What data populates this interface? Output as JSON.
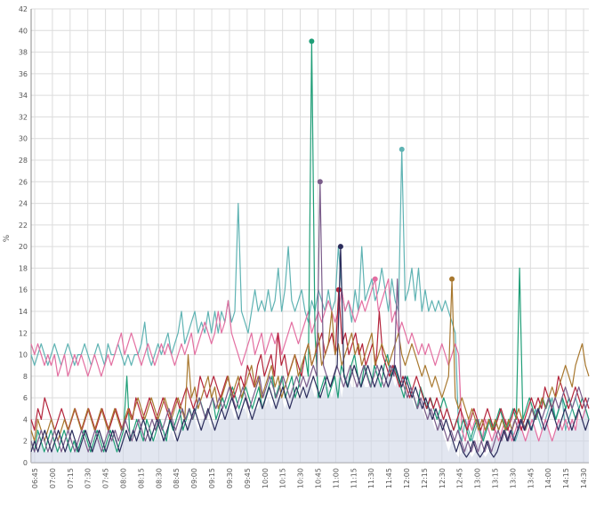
{
  "chart_data": {
    "type": "line",
    "title": "",
    "xlabel": "",
    "ylabel": "%",
    "ylim": [
      0,
      42
    ],
    "y_ticks": [
      0,
      2,
      4,
      6,
      8,
      10,
      12,
      14,
      16,
      18,
      20,
      22,
      24,
      26,
      28,
      30,
      32,
      34,
      36,
      38,
      40,
      42
    ],
    "x_ticks": [
      "06:45",
      "07:00",
      "07:15",
      "07:30",
      "07:45",
      "08:00",
      "08:15",
      "08:30",
      "08:45",
      "09:00",
      "09:15",
      "09:30",
      "09:45",
      "10:00",
      "10:15",
      "10:30",
      "10:45",
      "11:00",
      "11:15",
      "11:30",
      "11:45",
      "12:00",
      "12:15",
      "12:30",
      "12:45",
      "13:00",
      "13:15",
      "13:30",
      "13:45",
      "14:00",
      "14:15",
      "14:30"
    ],
    "grid": true,
    "legend": "none",
    "series": [
      {
        "color": "#5fb3b3",
        "values": [
          10,
          9,
          10,
          11,
          10,
          9,
          10,
          11,
          10,
          9,
          10,
          11,
          10,
          9,
          10,
          10,
          11,
          10,
          9,
          10,
          11,
          10,
          9,
          11,
          10,
          10,
          11,
          10,
          9,
          10,
          9,
          10,
          10,
          11,
          13,
          10,
          9,
          10,
          11,
          10,
          11,
          12,
          10,
          11,
          12,
          14,
          11,
          12,
          13,
          14,
          12,
          13,
          12,
          14,
          12,
          14,
          12,
          14,
          13,
          15,
          13,
          14,
          24,
          14,
          13,
          12,
          14,
          16,
          14,
          15,
          14,
          16,
          14,
          15,
          18,
          14,
          16,
          20,
          15,
          14,
          15,
          16,
          14,
          13,
          15,
          14,
          16,
          15,
          14,
          16,
          14,
          15,
          20,
          16,
          14,
          15,
          13,
          16,
          14,
          20,
          15,
          16,
          17,
          15,
          16,
          18,
          16,
          14,
          17,
          15,
          14,
          29,
          15,
          16,
          18,
          15,
          18,
          14,
          16,
          14,
          15,
          14,
          15,
          14,
          15,
          14,
          13,
          12,
          3,
          2,
          4,
          3,
          2,
          3,
          4,
          2,
          3,
          4,
          3,
          4,
          3,
          4,
          3,
          4,
          3,
          2,
          3,
          4,
          3,
          4,
          3,
          5,
          4,
          3,
          4,
          5,
          6,
          4,
          5,
          6,
          3,
          4,
          5,
          6,
          5,
          4,
          5,
          6
        ]
      },
      {
        "color": "#e36fa1",
        "values": [
          11,
          10,
          11,
          10,
          9,
          10,
          9,
          10,
          8,
          9,
          10,
          8,
          9,
          10,
          9,
          10,
          9,
          8,
          9,
          10,
          9,
          8,
          9,
          10,
          9,
          10,
          11,
          12,
          10,
          11,
          12,
          11,
          10,
          9,
          10,
          11,
          10,
          9,
          10,
          11,
          10,
          11,
          10,
          9,
          10,
          11,
          10,
          11,
          12,
          10,
          11,
          12,
          13,
          12,
          11,
          12,
          14,
          12,
          13,
          15,
          12,
          11,
          10,
          9,
          10,
          11,
          12,
          10,
          11,
          12,
          10,
          11,
          12,
          11,
          12,
          10,
          11,
          12,
          13,
          12,
          11,
          12,
          13,
          14,
          12,
          13,
          14,
          13,
          14,
          15,
          14,
          13,
          14,
          16,
          14,
          15,
          14,
          13,
          14,
          15,
          14,
          15,
          16,
          17,
          14,
          15,
          16,
          17,
          13,
          14,
          12,
          13,
          12,
          11,
          12,
          11,
          10,
          11,
          10,
          11,
          10,
          9,
          10,
          11,
          10,
          9,
          10,
          11,
          10,
          3,
          2,
          4,
          3,
          4,
          3,
          2,
          4,
          3,
          2,
          3,
          2,
          3,
          4,
          3,
          2,
          3,
          4,
          3,
          2,
          3,
          4,
          3,
          2,
          3,
          4,
          3,
          2,
          3,
          4,
          3,
          4,
          3,
          4,
          3,
          5,
          4,
          5,
          4
        ]
      },
      {
        "color": "#1f9e77",
        "values": [
          2,
          1,
          3,
          2,
          1,
          2,
          3,
          2,
          1,
          2,
          3,
          2,
          1,
          2,
          1,
          2,
          3,
          2,
          1,
          2,
          3,
          2,
          1,
          2,
          3,
          2,
          1,
          2,
          3,
          8,
          2,
          3,
          4,
          3,
          2,
          4,
          3,
          2,
          3,
          4,
          3,
          2,
          4,
          3,
          4,
          5,
          3,
          4,
          5,
          4,
          5,
          6,
          5,
          4,
          5,
          6,
          4,
          5,
          6,
          5,
          6,
          7,
          6,
          5,
          6,
          7,
          6,
          5,
          6,
          7,
          5,
          6,
          7,
          8,
          6,
          7,
          8,
          6,
          7,
          8,
          6,
          7,
          9,
          10,
          8,
          39,
          12,
          6,
          7,
          8,
          6,
          7,
          8,
          6,
          9,
          8,
          7,
          9,
          10,
          8,
          7,
          9,
          8,
          7,
          9,
          8,
          7,
          9,
          10,
          8,
          9,
          8,
          7,
          6,
          8,
          7,
          6,
          5,
          7,
          6,
          5,
          6,
          5,
          4,
          5,
          6,
          5,
          4,
          3,
          4,
          3,
          4,
          3,
          2,
          3,
          4,
          3,
          2,
          3,
          4,
          3,
          4,
          5,
          4,
          3,
          4,
          5,
          4,
          18,
          4,
          5,
          6,
          5,
          4,
          5,
          6,
          5,
          6,
          5,
          4,
          5,
          6,
          5,
          6,
          5,
          4,
          5,
          6,
          5,
          4
        ]
      },
      {
        "color": "#b3243b",
        "values": [
          4,
          3,
          5,
          4,
          6,
          5,
          4,
          3,
          4,
          5,
          4,
          3,
          4,
          5,
          4,
          3,
          4,
          5,
          4,
          3,
          4,
          5,
          4,
          3,
          4,
          5,
          4,
          3,
          4,
          5,
          4,
          6,
          5,
          4,
          5,
          6,
          5,
          4,
          5,
          6,
          5,
          4,
          5,
          6,
          5,
          6,
          7,
          6,
          5,
          6,
          8,
          7,
          6,
          7,
          8,
          7,
          6,
          7,
          8,
          7,
          6,
          7,
          8,
          7,
          9,
          8,
          7,
          9,
          10,
          8,
          9,
          10,
          8,
          12,
          9,
          10,
          8,
          9,
          10,
          9,
          8,
          10,
          11,
          9,
          10,
          11,
          12,
          10,
          11,
          12,
          10,
          16,
          11,
          12,
          10,
          11,
          12,
          10,
          11,
          9,
          10,
          11,
          9,
          14,
          10,
          9,
          8,
          9,
          8,
          7,
          8,
          7,
          6,
          7,
          8,
          7,
          6,
          5,
          6,
          5,
          6,
          5,
          4,
          5,
          4,
          3,
          4,
          5,
          4,
          3,
          4,
          5,
          4,
          3,
          4,
          5,
          4,
          3,
          4,
          5,
          4,
          3,
          4,
          5,
          4,
          3,
          4,
          5,
          6,
          5,
          6,
          5,
          7,
          6,
          5,
          6,
          8,
          7,
          6,
          5,
          6,
          7,
          6,
          5,
          6,
          5
        ]
      },
      {
        "color": "#a8782f",
        "values": [
          3,
          2,
          4,
          3,
          2,
          3,
          4,
          3,
          2,
          3,
          4,
          3,
          4,
          5,
          4,
          3,
          4,
          5,
          4,
          3,
          4,
          5,
          4,
          3,
          4,
          5,
          4,
          3,
          4,
          5,
          4,
          5,
          6,
          5,
          4,
          5,
          6,
          5,
          4,
          5,
          6,
          5,
          4,
          5,
          6,
          5,
          4,
          10,
          6,
          7,
          5,
          6,
          7,
          8,
          6,
          7,
          5,
          6,
          7,
          8,
          6,
          7,
          8,
          6,
          7,
          8,
          9,
          7,
          8,
          6,
          7,
          8,
          9,
          7,
          8,
          6,
          7,
          8,
          9,
          10,
          8,
          9,
          10,
          11,
          9,
          10,
          12,
          9,
          10,
          11,
          14,
          10,
          11,
          9,
          10,
          11,
          12,
          10,
          11,
          9,
          10,
          11,
          12,
          9,
          10,
          11,
          10,
          9,
          10,
          11,
          12,
          10,
          9,
          10,
          11,
          10,
          9,
          8,
          9,
          8,
          7,
          8,
          7,
          6,
          7,
          8,
          17,
          6,
          5,
          6,
          5,
          4,
          5,
          4,
          3,
          4,
          3,
          4,
          3,
          4,
          3,
          4,
          3,
          4,
          3,
          4,
          5,
          4,
          3,
          4,
          5,
          4,
          5,
          6,
          5,
          6,
          7,
          6,
          7,
          8,
          9,
          8,
          7,
          9,
          10,
          11,
          9,
          8
        ]
      },
      {
        "color": "#7a5c8a",
        "values": [
          2,
          1,
          2,
          3,
          2,
          1,
          2,
          3,
          2,
          1,
          2,
          3,
          2,
          1,
          2,
          3,
          2,
          1,
          2,
          3,
          2,
          1,
          2,
          3,
          2,
          3,
          2,
          3,
          4,
          3,
          2,
          3,
          4,
          3,
          2,
          3,
          4,
          3,
          4,
          3,
          4,
          5,
          4,
          3,
          4,
          5,
          4,
          5,
          4,
          5,
          6,
          5,
          4,
          5,
          6,
          5,
          6,
          5,
          6,
          7,
          6,
          5,
          6,
          7,
          6,
          5,
          6,
          7,
          8,
          6,
          7,
          8,
          7,
          6,
          7,
          8,
          7,
          6,
          7,
          8,
          7,
          8,
          7,
          8,
          9,
          8,
          26,
          9,
          8,
          7,
          8,
          9,
          8,
          7,
          8,
          9,
          8,
          7,
          8,
          9,
          8,
          7,
          8,
          9,
          8,
          7,
          8,
          9,
          8,
          17,
          8,
          7,
          6,
          7,
          6,
          5,
          6,
          5,
          4,
          5,
          4,
          3,
          4,
          3,
          2,
          3,
          2,
          3,
          2,
          1,
          2,
          1,
          2,
          1,
          2,
          1,
          2,
          1,
          2,
          3,
          2,
          3,
          2,
          3,
          4,
          3,
          4,
          3,
          4,
          5,
          4,
          5,
          4,
          5,
          6,
          5,
          6,
          5,
          6,
          7,
          6,
          5,
          6,
          7,
          6,
          5,
          6
        ]
      },
      {
        "color": "#2b2d5c",
        "values": [
          1,
          2,
          1,
          2,
          3,
          2,
          1,
          2,
          3,
          2,
          1,
          2,
          3,
          2,
          1,
          2,
          3,
          2,
          1,
          2,
          3,
          2,
          1,
          2,
          3,
          2,
          1,
          2,
          3,
          2,
          3,
          2,
          3,
          4,
          3,
          2,
          3,
          4,
          3,
          2,
          3,
          4,
          3,
          2,
          3,
          4,
          3,
          4,
          5,
          4,
          3,
          4,
          5,
          4,
          3,
          4,
          5,
          4,
          5,
          6,
          5,
          4,
          5,
          6,
          5,
          4,
          5,
          6,
          5,
          6,
          7,
          6,
          5,
          6,
          7,
          6,
          5,
          6,
          7,
          6,
          7,
          6,
          7,
          8,
          7,
          6,
          7,
          8,
          7,
          8,
          9,
          20,
          8,
          7,
          8,
          9,
          8,
          7,
          8,
          9,
          8,
          7,
          8,
          9,
          8,
          7,
          8,
          9,
          8,
          7,
          8,
          7,
          6,
          7,
          6,
          5,
          6,
          5,
          4,
          5,
          4,
          3,
          4,
          3,
          2,
          1,
          2,
          1,
          0.5,
          1,
          2,
          1,
          0.5,
          1,
          2,
          1,
          0.5,
          1,
          2,
          3,
          2,
          3,
          2,
          3,
          4,
          3,
          4,
          3,
          4,
          5,
          4,
          3,
          4,
          5,
          4,
          3,
          4,
          5,
          4,
          3,
          4,
          5,
          4,
          3,
          4
        ]
      }
    ]
  }
}
